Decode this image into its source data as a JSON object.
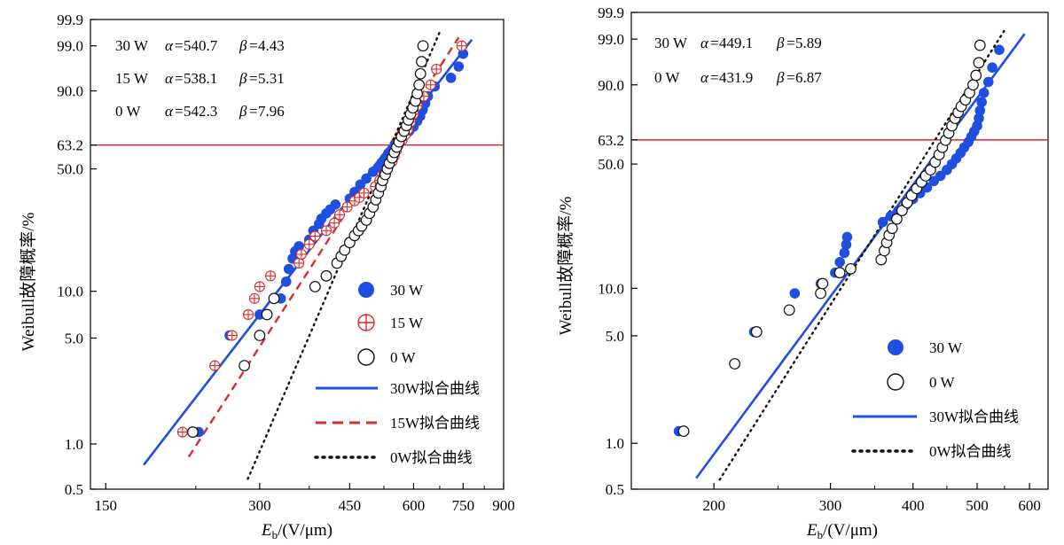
{
  "colors": {
    "blue": "#1f4fe0",
    "red": "#d92b2b",
    "black": "#111111",
    "refline": "#e02020"
  },
  "chart_data": [
    {
      "type": "scatter",
      "scale": "weibull",
      "xlabel_main": "E",
      "xlabel_sub": "b",
      "xlabel_rest": "/(V/μm)",
      "ylabel": "Weibull故障概率/%",
      "xlim": [
        140,
        900
      ],
      "ylim": [
        0.5,
        99.9
      ],
      "xticks": [
        150,
        300,
        450,
        600,
        750,
        900
      ],
      "yticks": [
        0.5,
        1.0,
        5.0,
        10.0,
        50.0,
        63.2,
        90.0,
        99.0,
        99.9
      ],
      "ytick_labels": [
        "0.5",
        "1.0",
        "5.0",
        "10.0",
        "50.0",
        "63.2",
        "90.0",
        "99.0",
        "99.9"
      ],
      "reference_line": 63.2,
      "annotations": [
        {
          "series": "30 W",
          "alpha_label": "α",
          "alpha": "540.7",
          "beta_label": "β",
          "beta": "4.43"
        },
        {
          "series": "15 W",
          "alpha_label": "α",
          "alpha": "538.1",
          "beta_label": "β",
          "beta": "5.31"
        },
        {
          "series": "0 W",
          "alpha_label": "α",
          "alpha": "542.3",
          "beta_label": "β",
          "beta": "7.96"
        }
      ],
      "legend": [
        "30 W",
        "15 W",
        "0 W",
        "30W拟合曲线",
        "15W拟合曲线",
        "0W拟合曲线"
      ],
      "series": [
        {
          "name": "30 W",
          "marker": "filled",
          "color": "#1f4fe0",
          "points": [
            [
              228,
              1.2
            ],
            [
              245,
              3.3
            ],
            [
              262,
              5.2
            ],
            [
              300,
              7.1
            ],
            [
              330,
              9.0
            ],
            [
              338,
              11.5
            ],
            [
              342,
              13.8
            ],
            [
              348,
              16.0
            ],
            [
              352,
              17.7
            ],
            [
              358,
              19.0
            ],
            [
              375,
              20.8
            ],
            [
              382,
              23.5
            ],
            [
              392,
              25.7
            ],
            [
              396,
              27.5
            ],
            [
              405,
              29.5
            ],
            [
              412,
              31.0
            ],
            [
              422,
              33.0
            ],
            [
              450,
              35.5
            ],
            [
              460,
              38.5
            ],
            [
              472,
              42.0
            ],
            [
              485,
              45.0
            ],
            [
              500,
              48.5
            ],
            [
              512,
              51.0
            ],
            [
              520,
              53.5
            ],
            [
              528,
              56.0
            ],
            [
              535,
              58.5
            ],
            [
              545,
              61.0
            ],
            [
              552,
              63.5
            ],
            [
              565,
              66.0
            ],
            [
              575,
              68.5
            ],
            [
              588,
              71.0
            ],
            [
              600,
              73.5
            ],
            [
              610,
              76.5
            ],
            [
              618,
              79.0
            ],
            [
              625,
              82.0
            ],
            [
              632,
              85.0
            ],
            [
              640,
              88.0
            ],
            [
              660,
              91.5
            ],
            [
              710,
              94.0
            ],
            [
              735,
              96.5
            ],
            [
              750,
              98.3
            ]
          ]
        },
        {
          "name": "15 W",
          "marker": "crossed",
          "color": "#d92b2b",
          "points": [
            [
              212,
              1.2
            ],
            [
              245,
              3.3
            ],
            [
              265,
              5.2
            ],
            [
              285,
              7.1
            ],
            [
              293,
              9.0
            ],
            [
              300,
              10.7
            ],
            [
              315,
              12.5
            ],
            [
              358,
              15.0
            ],
            [
              362,
              17.0
            ],
            [
              375,
              19.5
            ],
            [
              385,
              21.8
            ],
            [
              405,
              23.5
            ],
            [
              420,
              26.0
            ],
            [
              430,
              29.0
            ],
            [
              445,
              32.0
            ],
            [
              460,
              34.5
            ],
            [
              470,
              36.0
            ],
            [
              480,
              38.0
            ],
            [
              505,
              41.0
            ],
            [
              515,
              44.0
            ],
            [
              525,
              47.0
            ],
            [
              535,
              51.0
            ],
            [
              545,
              54.0
            ],
            [
              550,
              57.0
            ],
            [
              555,
              60.0
            ],
            [
              560,
              63.0
            ],
            [
              570,
              66.0
            ],
            [
              578,
              69.0
            ],
            [
              585,
              72.0
            ],
            [
              592,
              76.0
            ],
            [
              600,
              80.0
            ],
            [
              610,
              84.0
            ],
            [
              628,
              88.0
            ],
            [
              648,
              92.0
            ],
            [
              665,
              96.0
            ],
            [
              745,
              99.0
            ]
          ]
        },
        {
          "name": "0 W",
          "marker": "hollow",
          "color": "#111111",
          "points": [
            [
              222,
              1.2
            ],
            [
              280,
              3.3
            ],
            [
              300,
              5.2
            ],
            [
              310,
              7.1
            ],
            [
              320,
              9.0
            ],
            [
              385,
              10.7
            ],
            [
              405,
              12.5
            ],
            [
              425,
              15.0
            ],
            [
              433,
              16.5
            ],
            [
              440,
              18.0
            ],
            [
              450,
              20.0
            ],
            [
              460,
              22.0
            ],
            [
              468,
              23.5
            ],
            [
              475,
              25.0
            ],
            [
              485,
              27.0
            ],
            [
              492,
              29.5
            ],
            [
              500,
              32.0
            ],
            [
              506,
              35.0
            ],
            [
              512,
              38.0
            ],
            [
              518,
              41.0
            ],
            [
              522,
              44.0
            ],
            [
              528,
              47.0
            ],
            [
              533,
              50.0
            ],
            [
              538,
              53.0
            ],
            [
              545,
              56.0
            ],
            [
              550,
              59.0
            ],
            [
              556,
              62.0
            ],
            [
              562,
              65.0
            ],
            [
              568,
              68.0
            ],
            [
              575,
              71.0
            ],
            [
              581,
              74.0
            ],
            [
              586,
              77.0
            ],
            [
              592,
              80.0
            ],
            [
              598,
              83.0
            ],
            [
              605,
              86.0
            ],
            [
              610,
              89.0
            ],
            [
              615,
              92.0
            ],
            [
              619,
              95.0
            ],
            [
              622,
              97.3
            ],
            [
              626,
              99.0
            ]
          ]
        }
      ],
      "fits": [
        {
          "name": "30W拟合曲线",
          "alpha": 540.7,
          "beta": 4.43,
          "x_range": [
            178,
            780
          ],
          "color": "#1f4fe0",
          "style": "solid"
        },
        {
          "name": "15W拟合曲线",
          "alpha": 538.1,
          "beta": 5.31,
          "x_range": [
            218,
            735
          ],
          "color": "#d92b2b",
          "style": "dashed"
        },
        {
          "name": "0W拟合曲线",
          "alpha": 542.3,
          "beta": 7.96,
          "x_range": [
            278,
            690
          ],
          "color": "#111111",
          "style": "dotted"
        }
      ]
    },
    {
      "type": "scatter",
      "scale": "weibull",
      "xlabel_main": "E",
      "xlabel_sub": "b",
      "xlabel_rest": "/(V/μm)",
      "ylabel": "Weibull故障概率/%",
      "xlim": [
        150,
        640
      ],
      "ylim": [
        0.5,
        99.9
      ],
      "xticks": [
        200,
        300,
        400,
        500,
        600
      ],
      "yticks": [
        0.5,
        1.0,
        5.0,
        10.0,
        50.0,
        63.2,
        90.0,
        99.0,
        99.9
      ],
      "ytick_labels": [
        "0.5",
        "1.0",
        "5.0",
        "10.0",
        "50.0",
        "63.2",
        "90.0",
        "99.0",
        "99.9"
      ],
      "reference_line": 63.2,
      "annotations": [
        {
          "series": "30 W",
          "alpha_label": "α",
          "alpha": "449.1",
          "beta_label": "β",
          "beta": "5.89"
        },
        {
          "series": "0 W",
          "alpha_label": "α",
          "alpha": "431.9",
          "beta_label": "β",
          "beta": "6.87"
        }
      ],
      "legend": [
        "30 W",
        "0 W",
        "30W拟合曲线",
        "0W拟合曲线"
      ],
      "series": [
        {
          "name": "30 W",
          "marker": "filled",
          "color": "#1f4fe0",
          "points": [
            [
              177,
              1.2
            ],
            [
              230,
              5.3
            ],
            [
              265,
              9.3
            ],
            [
              290,
              10.7
            ],
            [
              305,
              12.5
            ],
            [
              310,
              14.5
            ],
            [
              315,
              16.5
            ],
            [
              317,
              18.5
            ],
            [
              318,
              20.5
            ],
            [
              360,
              25.0
            ],
            [
              370,
              27.0
            ],
            [
              380,
              29.0
            ],
            [
              390,
              31.0
            ],
            [
              400,
              33.5
            ],
            [
              410,
              36.0
            ],
            [
              420,
              38.5
            ],
            [
              430,
              41.5
            ],
            [
              440,
              44.0
            ],
            [
              450,
              47.0
            ],
            [
              458,
              50.0
            ],
            [
              465,
              53.0
            ],
            [
              472,
              56.0
            ],
            [
              478,
              59.0
            ],
            [
              485,
              62.0
            ],
            [
              490,
              65.0
            ],
            [
              495,
              68.0
            ],
            [
              500,
              71.0
            ],
            [
              503,
              75.0
            ],
            [
              505,
              79.0
            ],
            [
              508,
              83.0
            ],
            [
              512,
              87.0
            ],
            [
              520,
              91.0
            ],
            [
              527,
              95.0
            ],
            [
              540,
              98.0
            ]
          ]
        },
        {
          "name": "0 W",
          "marker": "hollow",
          "color": "#111111",
          "points": [
            [
              180,
              1.2
            ],
            [
              215,
              3.3
            ],
            [
              232,
              5.3
            ],
            [
              260,
              7.3
            ],
            [
              290,
              9.3
            ],
            [
              292,
              10.7
            ],
            [
              310,
              12.5
            ],
            [
              322,
              13.2
            ],
            [
              358,
              15.0
            ],
            [
              362,
              17.0
            ],
            [
              365,
              19.0
            ],
            [
              368,
              21.0
            ],
            [
              372,
              23.0
            ],
            [
              378,
              26.0
            ],
            [
              385,
              29.0
            ],
            [
              392,
              32.0
            ],
            [
              398,
              35.0
            ],
            [
              405,
              38.0
            ],
            [
              412,
              41.0
            ],
            [
              418,
              44.0
            ],
            [
              425,
              47.0
            ],
            [
              432,
              51.0
            ],
            [
              438,
              55.0
            ],
            [
              443,
              59.0
            ],
            [
              448,
              63.0
            ],
            [
              453,
              67.0
            ],
            [
              458,
              71.0
            ],
            [
              463,
              75.0
            ],
            [
              468,
              78.0
            ],
            [
              473,
              81.0
            ],
            [
              480,
              84.0
            ],
            [
              487,
              87.0
            ],
            [
              493,
              90.0
            ],
            [
              498,
              93.0
            ],
            [
              503,
              96.0
            ],
            [
              505,
              98.5
            ]
          ]
        }
      ],
      "fits": [
        {
          "name": "30W拟合曲线",
          "alpha": 449.1,
          "beta": 5.89,
          "x_range": [
            188,
            590
          ],
          "color": "#1f4fe0",
          "style": "solid"
        },
        {
          "name": "0W拟合曲线",
          "alpha": 431.9,
          "beta": 6.87,
          "x_range": [
            204,
            550
          ],
          "color": "#111111",
          "style": "dotted"
        }
      ]
    }
  ]
}
